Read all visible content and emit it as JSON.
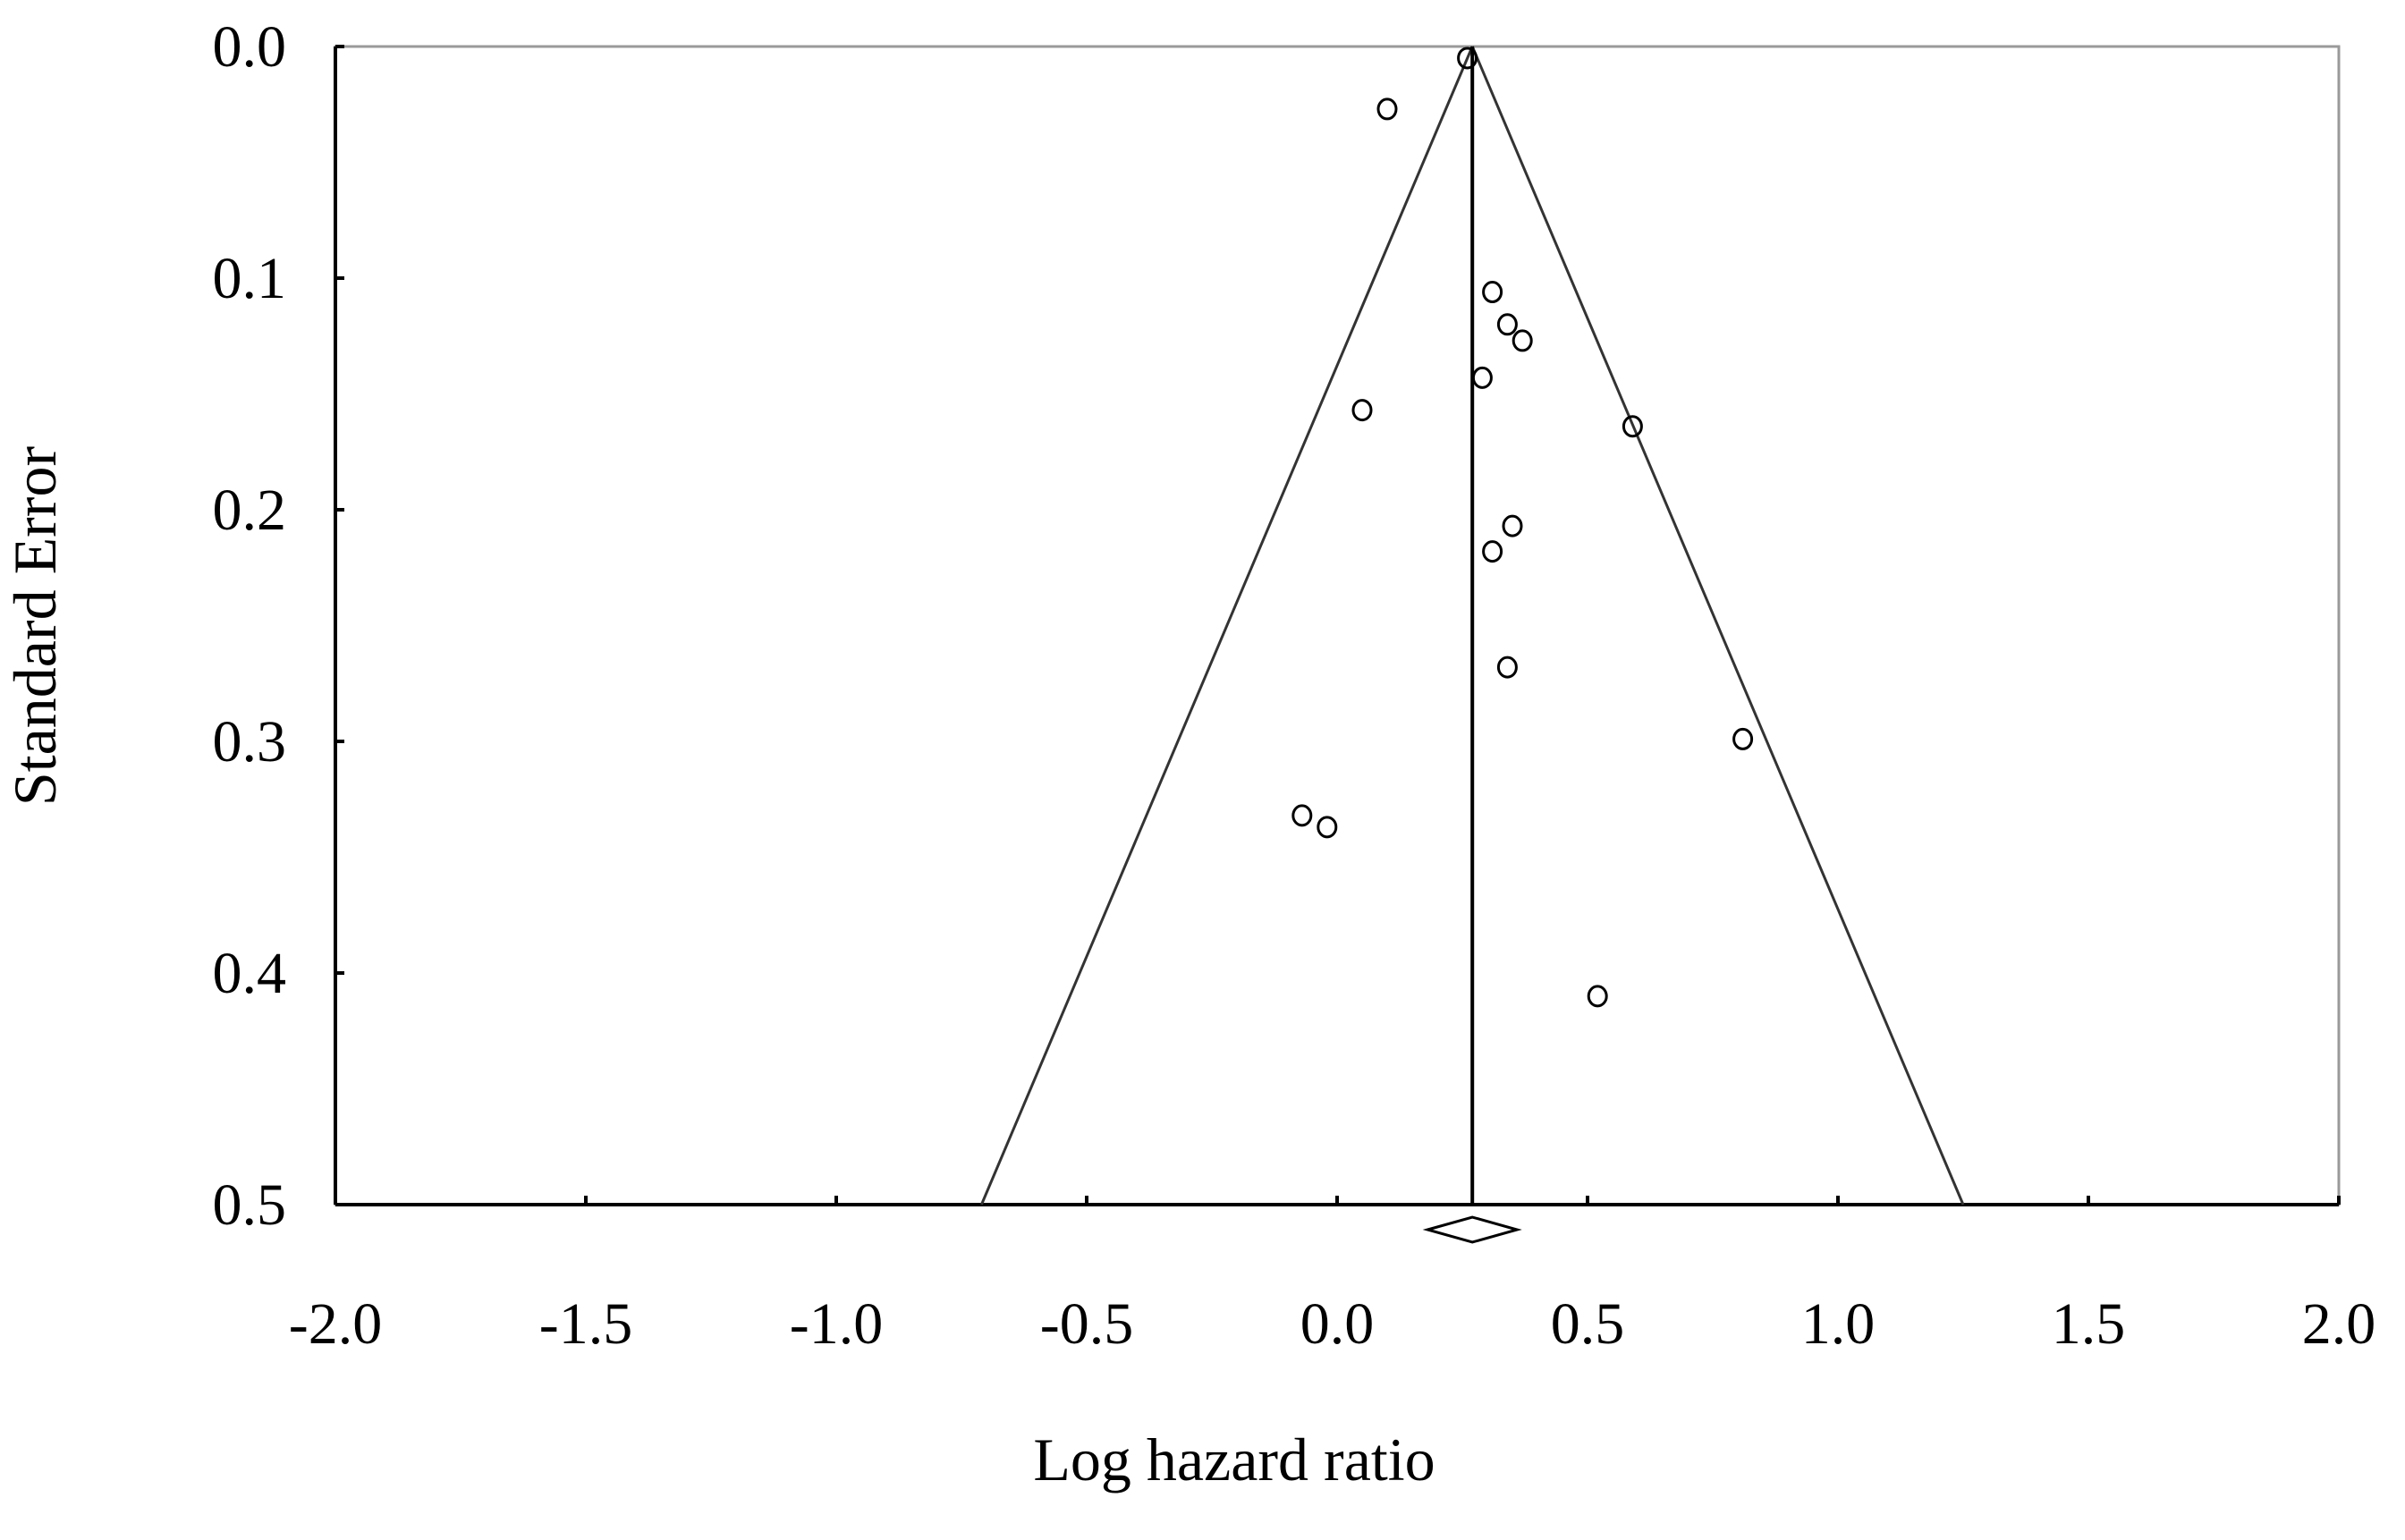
{
  "chart_data": {
    "type": "scatter",
    "title": "",
    "xlabel": "Log hazard ratio",
    "ylabel": "Standard Error",
    "xlim": [
      -2.0,
      2.0
    ],
    "ylim": [
      0.0,
      0.5
    ],
    "y_axis_inverted": true,
    "grid": false,
    "legend": "none",
    "x_ticks": [
      -2.0,
      -1.5,
      -1.0,
      -0.5,
      0.0,
      0.5,
      1.0,
      1.5,
      2.0
    ],
    "x_tick_labels": [
      "-2.0",
      "-1.5",
      "-1.0",
      "-0.5",
      "0.0",
      "0.5",
      "1.0",
      "1.5",
      "2.0"
    ],
    "y_ticks": [
      0.0,
      0.1,
      0.2,
      0.3,
      0.4,
      0.5
    ],
    "y_tick_labels": [
      "0.0",
      "0.1",
      "0.2",
      "0.3",
      "0.4",
      "0.5"
    ],
    "pooled_estimate": 0.27,
    "funnel": {
      "apex": [
        0.27,
        0.0
      ],
      "left_base": [
        -0.71,
        0.5
      ],
      "right_base": [
        1.25,
        0.5
      ]
    },
    "points": [
      {
        "x": 0.26,
        "y": 0.005
      },
      {
        "x": 0.1,
        "y": 0.027
      },
      {
        "x": 0.31,
        "y": 0.106
      },
      {
        "x": 0.34,
        "y": 0.12
      },
      {
        "x": 0.37,
        "y": 0.127
      },
      {
        "x": 0.29,
        "y": 0.143
      },
      {
        "x": 0.05,
        "y": 0.157
      },
      {
        "x": 0.59,
        "y": 0.164
      },
      {
        "x": 0.35,
        "y": 0.207
      },
      {
        "x": 0.31,
        "y": 0.218
      },
      {
        "x": 0.34,
        "y": 0.268
      },
      {
        "x": 0.81,
        "y": 0.299
      },
      {
        "x": -0.07,
        "y": 0.332
      },
      {
        "x": -0.02,
        "y": 0.337
      },
      {
        "x": 0.52,
        "y": 0.41
      }
    ]
  }
}
